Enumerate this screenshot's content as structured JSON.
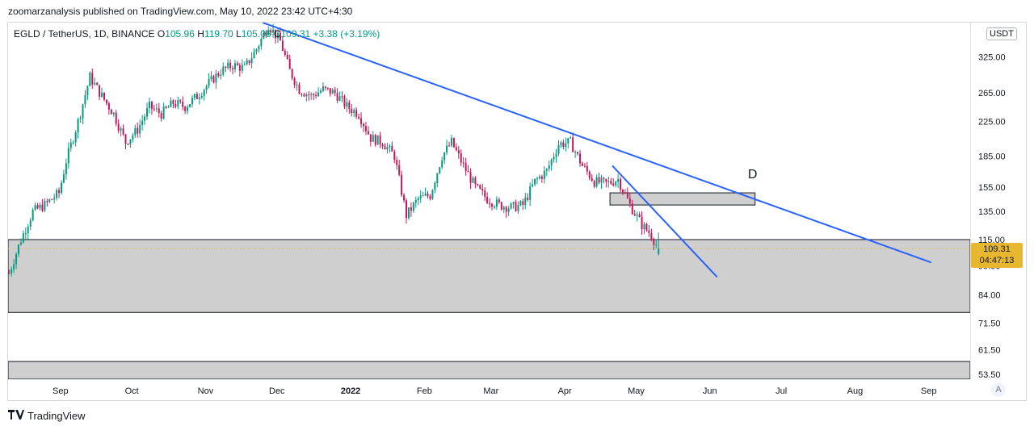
{
  "attribution": "zoomarzanalysis published on TradingView.com, May 10, 2022 23:42 UTC+4:30",
  "legend": {
    "symbol": "EGLD / TetherUS, 1D, BINANCE",
    "open_label": "O",
    "open": "105.96",
    "high_label": "H",
    "high": "119.70",
    "low_label": "L",
    "low": "105.06",
    "close_label": "C",
    "close": "109.31",
    "change": "+3.38 (+3.19%)"
  },
  "currency_button": "USDT",
  "last_price": "109.31",
  "countdown": "04:47:13",
  "auto_button": "A",
  "footer": {
    "brand": "TradingView",
    "logo_icon": "tradingview-logo-icon"
  },
  "colors": {
    "up": "#089981",
    "down": "#c2185b",
    "trendline": "#2962ff",
    "zone_fill": "#cfcfcf",
    "price_tag": "#e8b730"
  },
  "annotation_label": "D",
  "chart_data": {
    "type": "candlestick",
    "scale": "log",
    "y_ticks": [
      "53.50",
      "61.50",
      "71.50",
      "84.00",
      "99.00",
      "115.00",
      "135.00",
      "155.00",
      "185.00",
      "225.00",
      "265.00",
      "325.00"
    ],
    "x_ticks": [
      "Sep",
      "Oct",
      "Nov",
      "Dec",
      "2022",
      "Feb",
      "Mar",
      "Apr",
      "May",
      "Jun",
      "Jul",
      "Aug",
      "Sep"
    ],
    "ylim": [
      52,
      395
    ],
    "start_date": "2021-08-10",
    "last_bar": {
      "open": 105.96,
      "high": 119.7,
      "low": 105.06,
      "close": 109.31
    },
    "close_series": [
      {
        "date": "2021-08-10",
        "close": 95
      },
      {
        "date": "2021-08-15",
        "close": 115
      },
      {
        "date": "2021-08-20",
        "close": 135
      },
      {
        "date": "2021-08-25",
        "close": 140
      },
      {
        "date": "2021-08-31",
        "close": 150
      },
      {
        "date": "2021-09-03",
        "close": 180
      },
      {
        "date": "2021-09-08",
        "close": 225
      },
      {
        "date": "2021-09-13",
        "close": 290
      },
      {
        "date": "2021-09-18",
        "close": 260
      },
      {
        "date": "2021-09-23",
        "close": 235
      },
      {
        "date": "2021-09-28",
        "close": 200
      },
      {
        "date": "2021-10-03",
        "close": 215
      },
      {
        "date": "2021-10-08",
        "close": 245
      },
      {
        "date": "2021-10-13",
        "close": 235
      },
      {
        "date": "2021-10-18",
        "close": 250
      },
      {
        "date": "2021-10-23",
        "close": 245
      },
      {
        "date": "2021-10-28",
        "close": 260
      },
      {
        "date": "2021-11-02",
        "close": 280
      },
      {
        "date": "2021-11-07",
        "close": 300
      },
      {
        "date": "2021-11-12",
        "close": 310
      },
      {
        "date": "2021-11-17",
        "close": 305
      },
      {
        "date": "2021-11-22",
        "close": 340
      },
      {
        "date": "2021-11-27",
        "close": 390
      },
      {
        "date": "2021-12-02",
        "close": 355
      },
      {
        "date": "2021-12-06",
        "close": 300
      },
      {
        "date": "2021-12-10",
        "close": 270
      },
      {
        "date": "2021-12-15",
        "close": 260
      },
      {
        "date": "2021-12-20",
        "close": 270
      },
      {
        "date": "2021-12-25",
        "close": 265
      },
      {
        "date": "2021-12-30",
        "close": 245
      },
      {
        "date": "2022-01-04",
        "close": 235
      },
      {
        "date": "2022-01-09",
        "close": 205
      },
      {
        "date": "2022-01-14",
        "close": 200
      },
      {
        "date": "2022-01-19",
        "close": 185
      },
      {
        "date": "2022-01-24",
        "close": 132
      },
      {
        "date": "2022-01-29",
        "close": 145
      },
      {
        "date": "2022-02-03",
        "close": 148
      },
      {
        "date": "2022-02-08",
        "close": 185
      },
      {
        "date": "2022-02-12",
        "close": 200
      },
      {
        "date": "2022-02-17",
        "close": 175
      },
      {
        "date": "2022-02-22",
        "close": 155
      },
      {
        "date": "2022-02-27",
        "close": 145
      },
      {
        "date": "2022-03-04",
        "close": 140
      },
      {
        "date": "2022-03-09",
        "close": 138
      },
      {
        "date": "2022-03-14",
        "close": 140
      },
      {
        "date": "2022-03-19",
        "close": 160
      },
      {
        "date": "2022-03-24",
        "close": 170
      },
      {
        "date": "2022-03-29",
        "close": 198
      },
      {
        "date": "2022-04-03",
        "close": 200
      },
      {
        "date": "2022-04-08",
        "close": 175
      },
      {
        "date": "2022-04-13",
        "close": 160
      },
      {
        "date": "2022-04-18",
        "close": 158
      },
      {
        "date": "2022-04-23",
        "close": 162
      },
      {
        "date": "2022-04-28",
        "close": 140
      },
      {
        "date": "2022-05-03",
        "close": 125
      },
      {
        "date": "2022-05-07",
        "close": 118
      },
      {
        "date": "2022-05-10",
        "close": 109.31
      }
    ],
    "trendlines": [
      {
        "from": {
          "date": "2021-11-25",
          "price": 395
        },
        "to": {
          "date": "2022-09-02",
          "price": 101
        }
      },
      {
        "from": {
          "date": "2022-04-21",
          "price": 175
        },
        "to": {
          "date": "2022-06-04",
          "price": 93
        }
      }
    ],
    "zones": [
      {
        "top": 115,
        "bottom": 76
      },
      {
        "top": 57.5,
        "bottom": 52
      },
      {
        "from": "2022-04-20",
        "to": "2022-06-20",
        "top": 150,
        "bottom": 140
      }
    ],
    "annotation": {
      "text": "D",
      "date": "2022-06-17",
      "price": 163
    }
  }
}
